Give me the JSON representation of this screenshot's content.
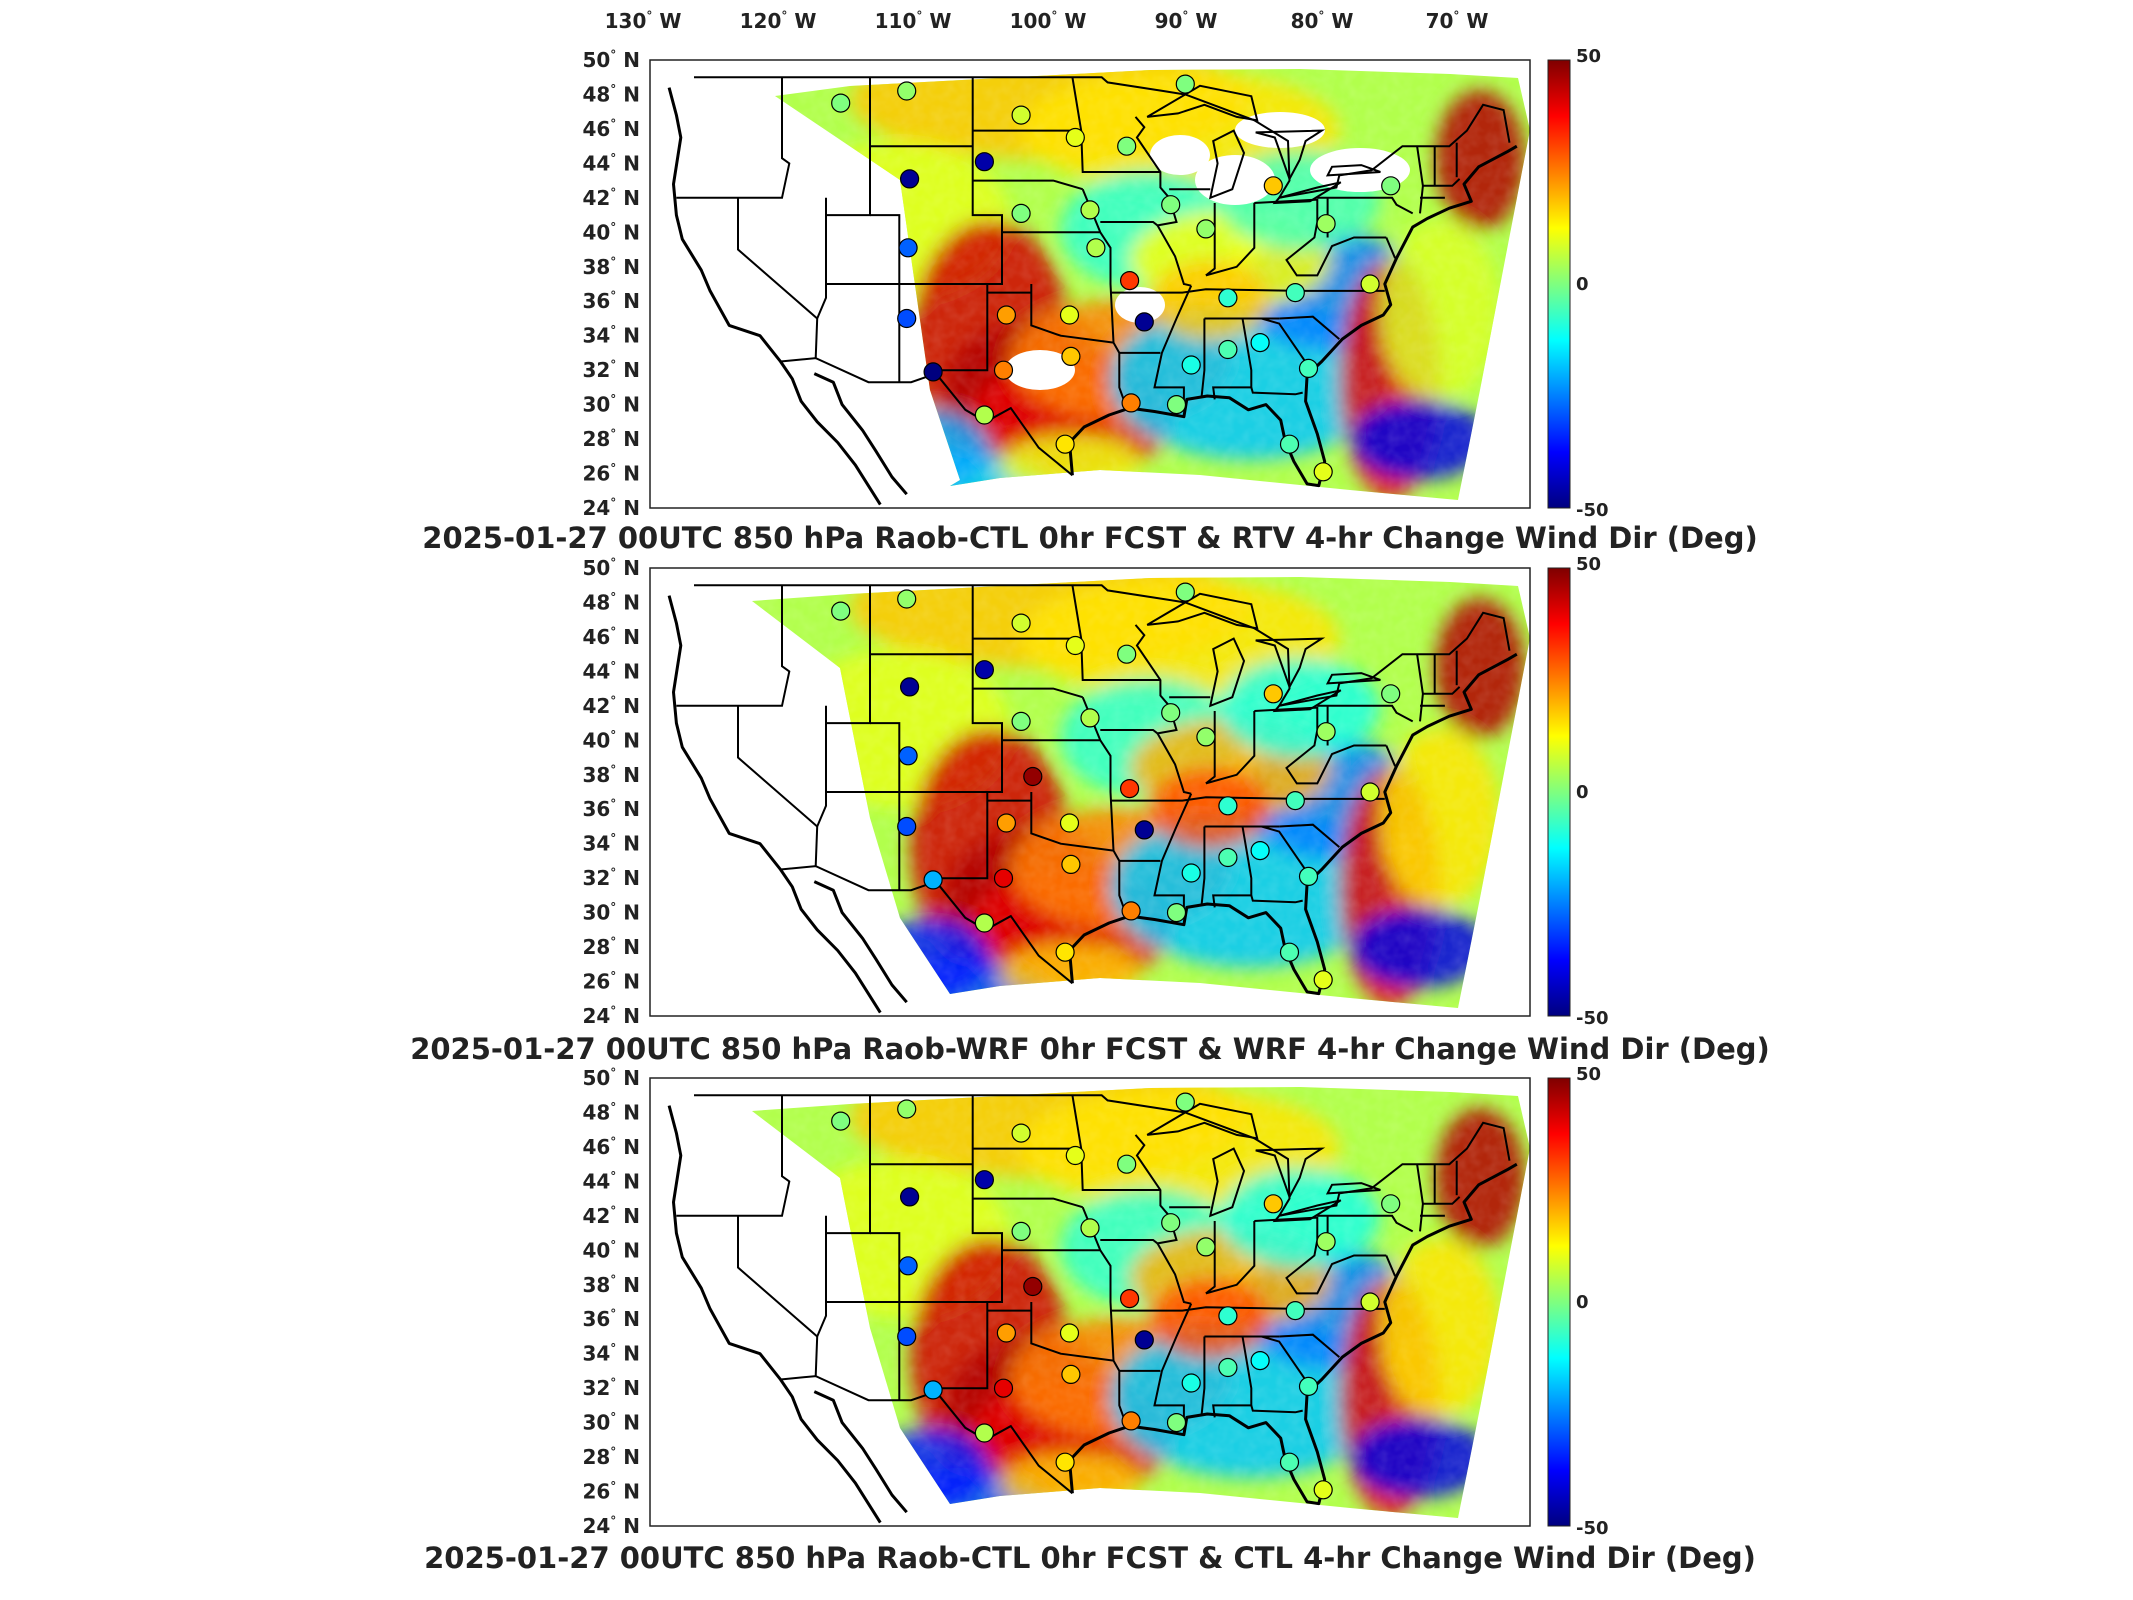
{
  "lon_labels": [
    "130",
    "120",
    "110",
    "100",
    "90",
    "80",
    "70"
  ],
  "lon_hemisphere": "W",
  "lat_labels": [
    "50",
    "48",
    "46",
    "44",
    "42",
    "40",
    "38",
    "36",
    "34",
    "32",
    "30",
    "28",
    "26",
    "24"
  ],
  "lat_hemisphere": "N",
  "degree_symbol": "°",
  "colorbar": {
    "max_label": "50",
    "mid_label": "0",
    "min_label": "-50",
    "colors": [
      "#00007f",
      "#0000ff",
      "#007fff",
      "#00ffff",
      "#7fff7f",
      "#ffff00",
      "#ff7f00",
      "#ff0000",
      "#7f0000"
    ]
  },
  "panels": [
    {
      "title": "2025-01-27 00UTC 850 hPa Raob-CTL 0hr FCST & RTV 4-hr Change Wind Dir (Deg)",
      "variant": "rtv",
      "stations": [
        {
          "lon": -113,
          "lat": 47.5,
          "v": 0
        },
        {
          "lon": -108.5,
          "lat": 48.2,
          "v": 2
        },
        {
          "lon": -100.7,
          "lat": 46.8,
          "v": 8
        },
        {
          "lon": -97,
          "lat": 45.5,
          "v": 10
        },
        {
          "lon": -89.5,
          "lat": 48.6,
          "v": 0
        },
        {
          "lon": -93.5,
          "lat": 45.0,
          "v": 0
        },
        {
          "lon": -108.3,
          "lat": 43.1,
          "v": -48
        },
        {
          "lon": -103.2,
          "lat": 44.1,
          "v": -46
        },
        {
          "lon": -108.4,
          "lat": 39.1,
          "v": -28
        },
        {
          "lon": -100.7,
          "lat": 41.1,
          "v": 0
        },
        {
          "lon": -96.0,
          "lat": 41.3,
          "v": 5
        },
        {
          "lon": -90.5,
          "lat": 41.6,
          "v": 0
        },
        {
          "lon": -88.1,
          "lat": 40.2,
          "v": 2
        },
        {
          "lon": -83.5,
          "lat": 42.7,
          "v": 18
        },
        {
          "lon": -79.9,
          "lat": 40.5,
          "v": 3
        },
        {
          "lon": -75.5,
          "lat": 42.7,
          "v": 0
        },
        {
          "lon": -93.3,
          "lat": 37.2,
          "v": 32
        },
        {
          "lon": -95.6,
          "lat": 39.1,
          "v": 5
        },
        {
          "lon": -86.6,
          "lat": 36.2,
          "v": -8
        },
        {
          "lon": -82.0,
          "lat": 36.5,
          "v": -6
        },
        {
          "lon": -76.9,
          "lat": 37.0,
          "v": 8
        },
        {
          "lon": -108.5,
          "lat": 35.0,
          "v": -30
        },
        {
          "lon": -101.7,
          "lat": 35.2,
          "v": 22
        },
        {
          "lon": -97.4,
          "lat": 35.2,
          "v": 10
        },
        {
          "lon": -92.3,
          "lat": 34.8,
          "v": -48
        },
        {
          "lon": -106.7,
          "lat": 31.9,
          "v": -50
        },
        {
          "lon": -101.9,
          "lat": 32.0,
          "v": 25
        },
        {
          "lon": -97.3,
          "lat": 32.8,
          "v": 18
        },
        {
          "lon": -89.1,
          "lat": 32.3,
          "v": -10
        },
        {
          "lon": -86.6,
          "lat": 33.2,
          "v": -5
        },
        {
          "lon": -84.4,
          "lat": 33.6,
          "v": -12
        },
        {
          "lon": -81.1,
          "lat": 32.1,
          "v": -6
        },
        {
          "lon": -90.1,
          "lat": 30.0,
          "v": 0
        },
        {
          "lon": -93.2,
          "lat": 30.1,
          "v": 25
        },
        {
          "lon": -97.7,
          "lat": 27.7,
          "v": 15
        },
        {
          "lon": -82.4,
          "lat": 27.7,
          "v": -5
        },
        {
          "lon": -103.2,
          "lat": 29.4,
          "v": 5
        },
        {
          "lon": -80.1,
          "lat": 26.1,
          "v": 10
        }
      ]
    },
    {
      "title": "2025-01-27 00UTC 850 hPa Raob-WRF 0hr FCST & WRF 4-hr Change Wind Dir (Deg)",
      "variant": "wrf",
      "stations": [
        {
          "lon": -113,
          "lat": 47.5,
          "v": 0
        },
        {
          "lon": -108.5,
          "lat": 48.2,
          "v": 2
        },
        {
          "lon": -100.7,
          "lat": 46.8,
          "v": 8
        },
        {
          "lon": -97,
          "lat": 45.5,
          "v": 10
        },
        {
          "lon": -89.5,
          "lat": 48.6,
          "v": 0
        },
        {
          "lon": -93.5,
          "lat": 45.0,
          "v": 0
        },
        {
          "lon": -108.3,
          "lat": 43.1,
          "v": -48
        },
        {
          "lon": -103.2,
          "lat": 44.1,
          "v": -46
        },
        {
          "lon": -108.4,
          "lat": 39.1,
          "v": -28
        },
        {
          "lon": -100.7,
          "lat": 41.1,
          "v": 0
        },
        {
          "lon": -96.0,
          "lat": 41.3,
          "v": 5
        },
        {
          "lon": -90.5,
          "lat": 41.6,
          "v": 0
        },
        {
          "lon": -88.1,
          "lat": 40.2,
          "v": 2
        },
        {
          "lon": -83.5,
          "lat": 42.7,
          "v": 18
        },
        {
          "lon": -79.9,
          "lat": 40.5,
          "v": 3
        },
        {
          "lon": -75.5,
          "lat": 42.7,
          "v": 0
        },
        {
          "lon": -93.3,
          "lat": 37.2,
          "v": 32
        },
        {
          "lon": -99.9,
          "lat": 37.9,
          "v": 48
        },
        {
          "lon": -86.6,
          "lat": 36.2,
          "v": -8
        },
        {
          "lon": -82.0,
          "lat": 36.5,
          "v": -6
        },
        {
          "lon": -76.9,
          "lat": 37.0,
          "v": 8
        },
        {
          "lon": -108.5,
          "lat": 35.0,
          "v": -30
        },
        {
          "lon": -101.7,
          "lat": 35.2,
          "v": 22
        },
        {
          "lon": -97.4,
          "lat": 35.2,
          "v": 10
        },
        {
          "lon": -92.3,
          "lat": 34.8,
          "v": -48
        },
        {
          "lon": -106.7,
          "lat": 31.9,
          "v": -20
        },
        {
          "lon": -101.9,
          "lat": 32.0,
          "v": 40
        },
        {
          "lon": -97.3,
          "lat": 32.8,
          "v": 18
        },
        {
          "lon": -89.1,
          "lat": 32.3,
          "v": -10
        },
        {
          "lon": -86.6,
          "lat": 33.2,
          "v": -5
        },
        {
          "lon": -84.4,
          "lat": 33.6,
          "v": -12
        },
        {
          "lon": -81.1,
          "lat": 32.1,
          "v": -6
        },
        {
          "lon": -90.1,
          "lat": 30.0,
          "v": 0
        },
        {
          "lon": -93.2,
          "lat": 30.1,
          "v": 25
        },
        {
          "lon": -97.7,
          "lat": 27.7,
          "v": 15
        },
        {
          "lon": -82.4,
          "lat": 27.7,
          "v": -5
        },
        {
          "lon": -103.2,
          "lat": 29.4,
          "v": 5
        },
        {
          "lon": -80.1,
          "lat": 26.1,
          "v": 10
        }
      ]
    },
    {
      "title": "2025-01-27 00UTC 850 hPa Raob-CTL 0hr FCST & CTL 4-hr Change Wind Dir (Deg)",
      "variant": "ctl",
      "stations": [
        {
          "lon": -113,
          "lat": 47.5,
          "v": 0
        },
        {
          "lon": -108.5,
          "lat": 48.2,
          "v": 2
        },
        {
          "lon": -100.7,
          "lat": 46.8,
          "v": 8
        },
        {
          "lon": -97,
          "lat": 45.5,
          "v": 10
        },
        {
          "lon": -89.5,
          "lat": 48.6,
          "v": 0
        },
        {
          "lon": -93.5,
          "lat": 45.0,
          "v": 0
        },
        {
          "lon": -108.3,
          "lat": 43.1,
          "v": -48
        },
        {
          "lon": -103.2,
          "lat": 44.1,
          "v": -46
        },
        {
          "lon": -108.4,
          "lat": 39.1,
          "v": -28
        },
        {
          "lon": -100.7,
          "lat": 41.1,
          "v": 0
        },
        {
          "lon": -96.0,
          "lat": 41.3,
          "v": 5
        },
        {
          "lon": -90.5,
          "lat": 41.6,
          "v": 0
        },
        {
          "lon": -88.1,
          "lat": 40.2,
          "v": 2
        },
        {
          "lon": -83.5,
          "lat": 42.7,
          "v": 18
        },
        {
          "lon": -79.9,
          "lat": 40.5,
          "v": 3
        },
        {
          "lon": -75.5,
          "lat": 42.7,
          "v": 0
        },
        {
          "lon": -93.3,
          "lat": 37.2,
          "v": 32
        },
        {
          "lon": -99.9,
          "lat": 37.9,
          "v": 48
        },
        {
          "lon": -86.6,
          "lat": 36.2,
          "v": -8
        },
        {
          "lon": -82.0,
          "lat": 36.5,
          "v": -6
        },
        {
          "lon": -76.9,
          "lat": 37.0,
          "v": 8
        },
        {
          "lon": -108.5,
          "lat": 35.0,
          "v": -30
        },
        {
          "lon": -101.7,
          "lat": 35.2,
          "v": 22
        },
        {
          "lon": -97.4,
          "lat": 35.2,
          "v": 10
        },
        {
          "lon": -92.3,
          "lat": 34.8,
          "v": -48
        },
        {
          "lon": -106.7,
          "lat": 31.9,
          "v": -20
        },
        {
          "lon": -101.9,
          "lat": 32.0,
          "v": 40
        },
        {
          "lon": -97.3,
          "lat": 32.8,
          "v": 18
        },
        {
          "lon": -89.1,
          "lat": 32.3,
          "v": -10
        },
        {
          "lon": -86.6,
          "lat": 33.2,
          "v": -5
        },
        {
          "lon": -84.4,
          "lat": 33.6,
          "v": -12
        },
        {
          "lon": -81.1,
          "lat": 32.1,
          "v": -6
        },
        {
          "lon": -90.1,
          "lat": 30.0,
          "v": 0
        },
        {
          "lon": -93.2,
          "lat": 30.1,
          "v": 25
        },
        {
          "lon": -97.7,
          "lat": 27.7,
          "v": 15
        },
        {
          "lon": -82.4,
          "lat": 27.7,
          "v": -5
        },
        {
          "lon": -103.2,
          "lat": 29.4,
          "v": 5
        },
        {
          "lon": -80.1,
          "lat": 26.1,
          "v": 10
        }
      ]
    }
  ]
}
